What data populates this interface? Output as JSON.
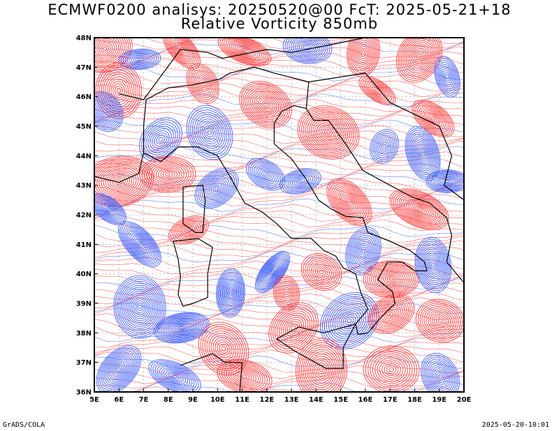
{
  "header": {
    "title_line1": "ECMWF0200 analisys: 20250520@00 FcT: 2025-05-21+18",
    "title_line2": "Relative Vorticity 850mb"
  },
  "map": {
    "lon_labels": [
      "5E",
      "6E",
      "7E",
      "8E",
      "9E",
      "10E",
      "11E",
      "12E",
      "13E",
      "14E",
      "15E",
      "16E",
      "17E",
      "18E",
      "19E",
      "20E"
    ],
    "lat_labels": [
      "48N",
      "47N",
      "46N",
      "45N",
      "44N",
      "43N",
      "42N",
      "41N",
      "40N",
      "39N",
      "38N",
      "37N",
      "36N"
    ],
    "lon_range": [
      5,
      20
    ],
    "lat_range": [
      36,
      48
    ],
    "colors": {
      "positive_vorticity": "#ff3333",
      "negative_vorticity": "#3355ff",
      "coastline": "#000000",
      "frame": "#000000"
    },
    "grid": "dotted"
  },
  "footer": {
    "left": "GrADS/COLA",
    "right": "2025-05-20-10:01"
  }
}
